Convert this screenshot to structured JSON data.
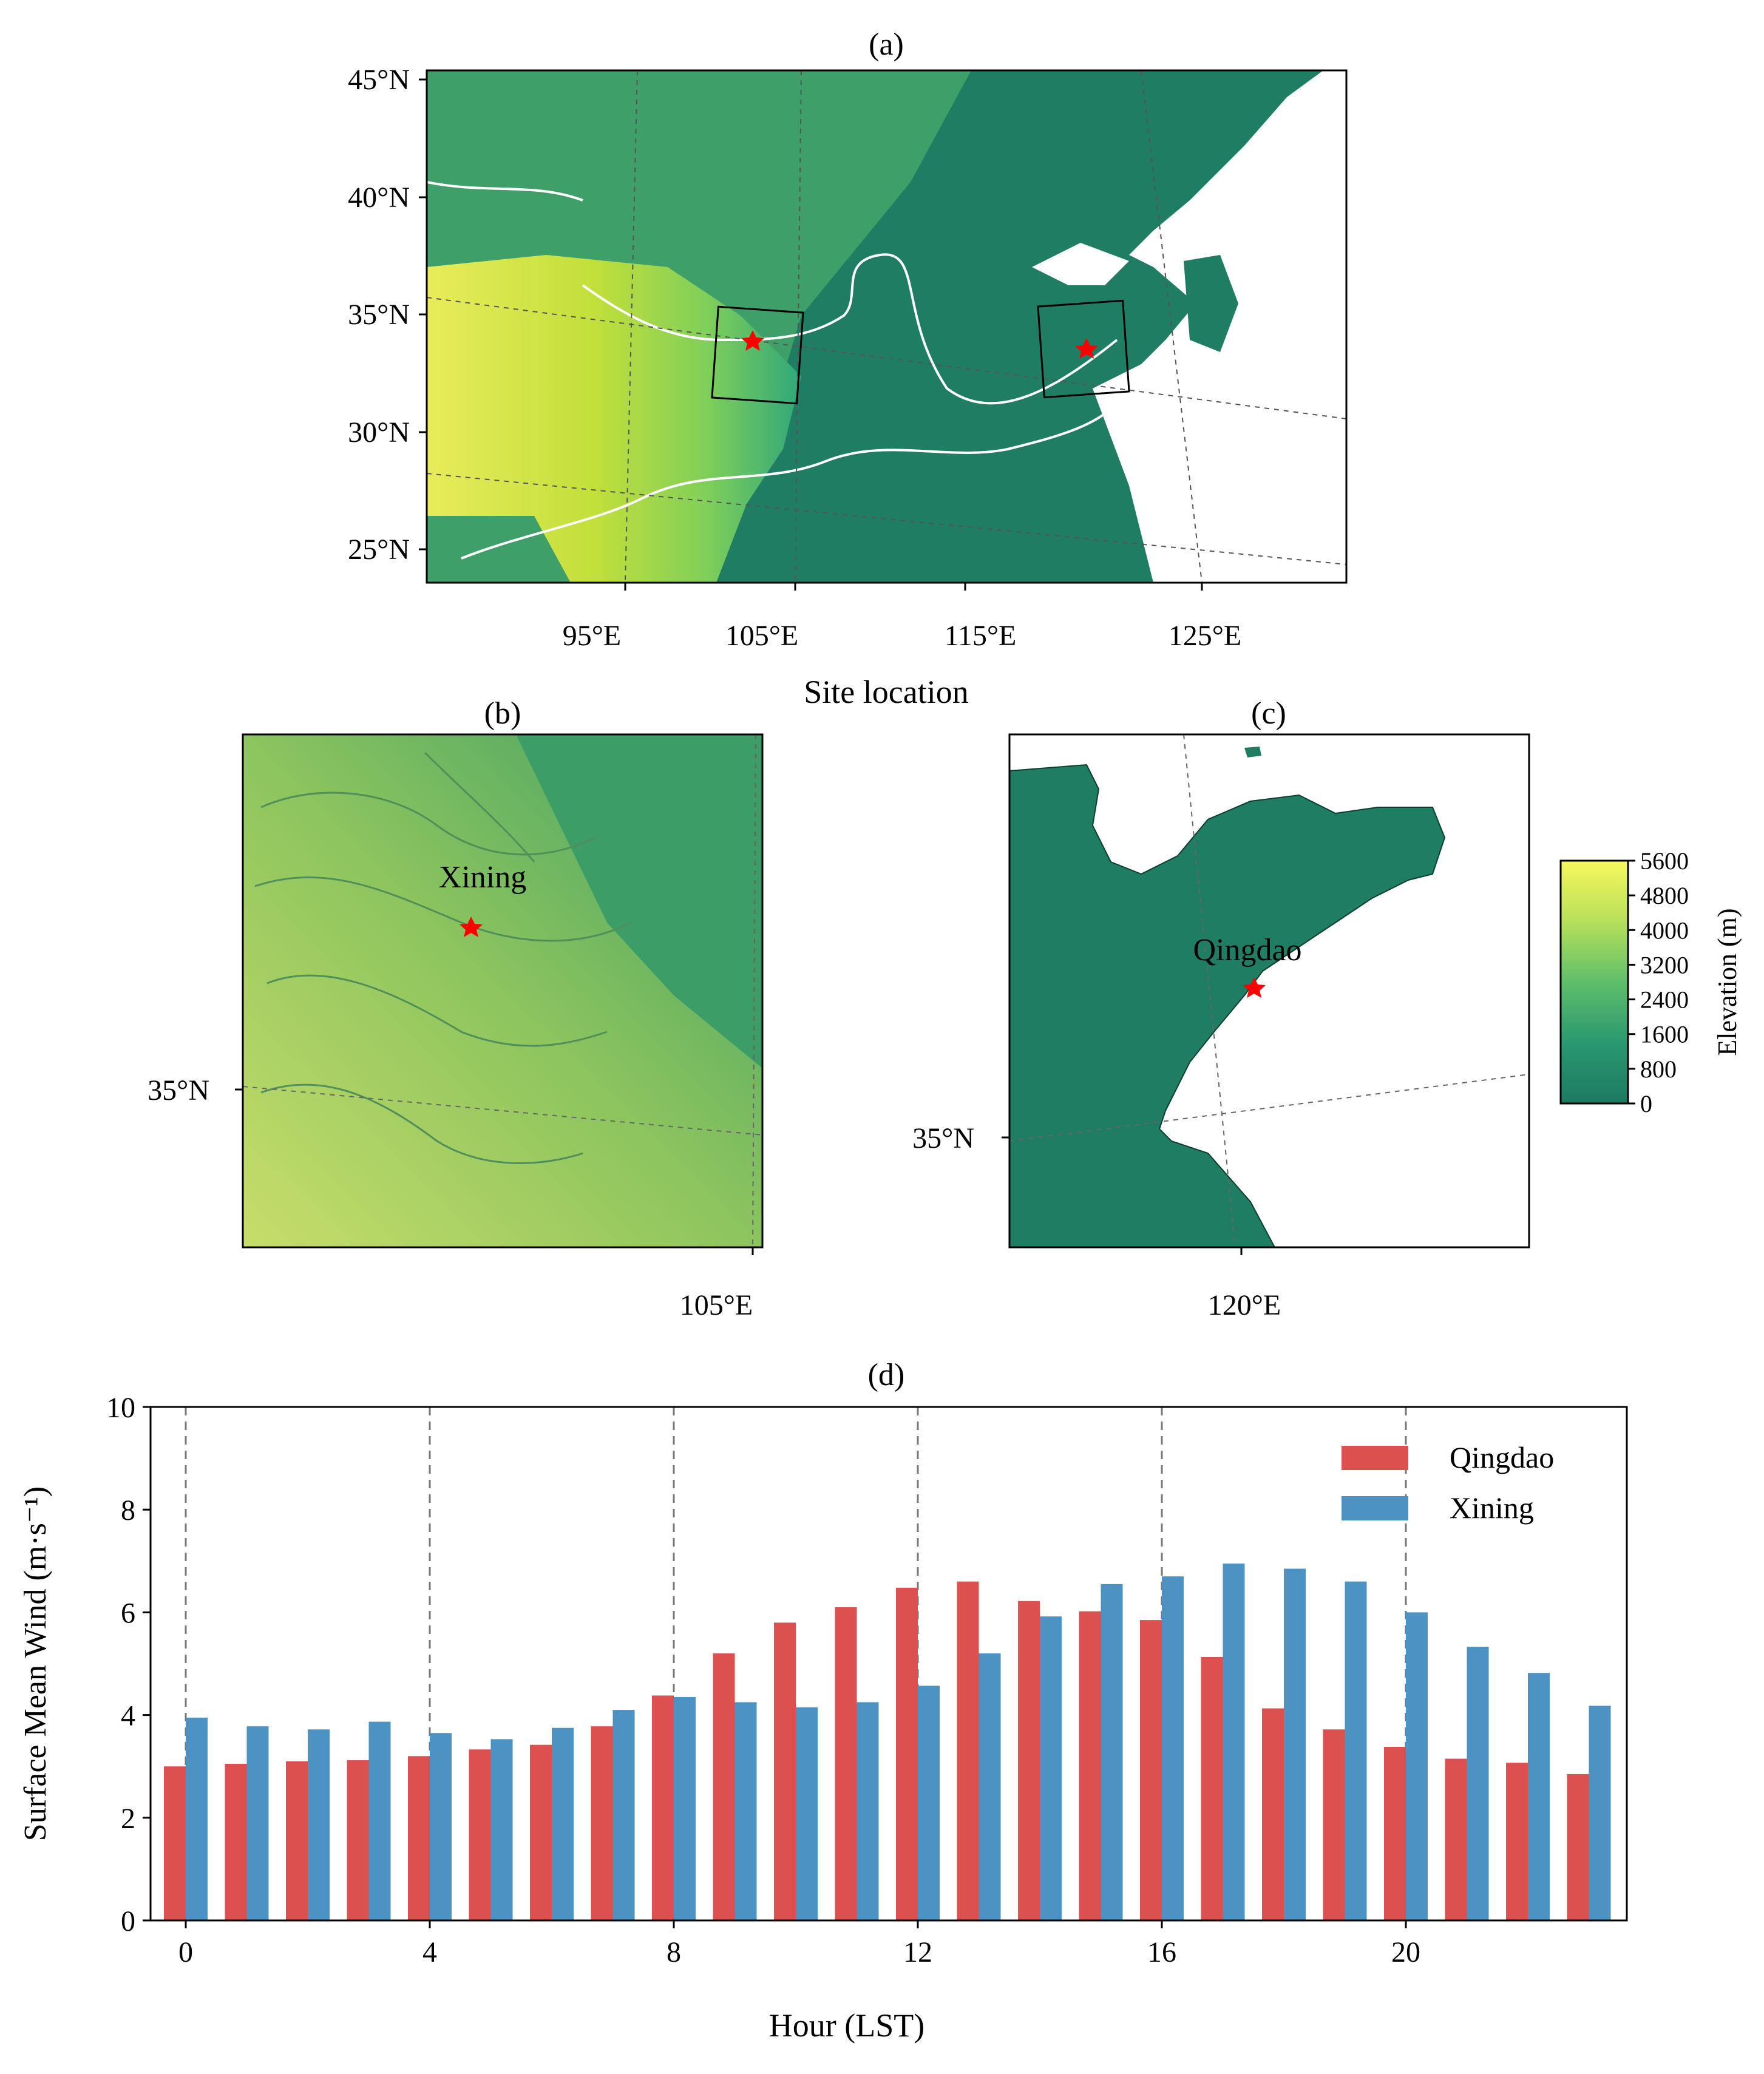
{
  "panels": {
    "a": {
      "title": "(a)",
      "xlabel": "Site location",
      "lat_ticks": [
        "45°N",
        "40°N",
        "35°N",
        "30°N",
        "25°N"
      ],
      "lon_ticks": [
        "95°E",
        "105°E",
        "115°E",
        "125°E"
      ]
    },
    "b": {
      "title": "(b)",
      "site_label": "Xining",
      "lat_tick": "35°N",
      "lon_tick": "105°E"
    },
    "c": {
      "title": "(c)",
      "site_label": "Qingdao",
      "lat_tick": "35°N",
      "lon_tick": "120°E"
    }
  },
  "colorbar": {
    "label": "Elevation (m)",
    "ticks": [
      "5600",
      "4800",
      "4000",
      "3200",
      "2400",
      "1600",
      "800",
      "0"
    ],
    "colors": [
      "#fde725",
      "#c2df23",
      "#86d549",
      "#52c569",
      "#2ab07f",
      "#1e9b8a",
      "#25858e",
      "#2d708e",
      "#38588c",
      "#433e85",
      "#482173",
      "#440154"
    ]
  },
  "colors": {
    "qingdao": "#dc5050",
    "xining": "#4c92c3",
    "lowland": "#1e7d63",
    "star": "#ff0000"
  },
  "chart_data": {
    "type": "bar",
    "title": "(d)",
    "xlabel": "Hour (LST)",
    "ylabel": "Surface Mean Wind (m·s⁻¹)",
    "ylim": [
      0,
      10
    ],
    "yticks": [
      "0",
      "2",
      "4",
      "6",
      "8",
      "10"
    ],
    "xticks": [
      "0",
      "4",
      "8",
      "12",
      "16",
      "20"
    ],
    "categories": [
      0,
      1,
      2,
      3,
      4,
      5,
      6,
      7,
      8,
      9,
      10,
      11,
      12,
      13,
      14,
      15,
      16,
      17,
      18,
      19,
      20,
      21,
      22,
      23
    ],
    "series": [
      {
        "name": "Qingdao",
        "values": [
          3.0,
          3.05,
          3.1,
          3.12,
          3.2,
          3.33,
          3.42,
          3.78,
          4.38,
          5.2,
          5.8,
          6.1,
          6.48,
          6.6,
          6.22,
          6.02,
          5.85,
          5.13,
          4.13,
          3.72,
          3.38,
          3.15,
          3.07,
          2.85
        ]
      },
      {
        "name": "Xining",
        "values": [
          3.95,
          3.78,
          3.72,
          3.87,
          3.65,
          3.53,
          3.75,
          4.1,
          4.35,
          4.25,
          4.15,
          4.25,
          4.57,
          5.2,
          5.92,
          6.55,
          6.7,
          6.95,
          6.85,
          6.6,
          6.0,
          5.33,
          4.82,
          4.18
        ]
      }
    ],
    "legend": [
      "Qingdao",
      "Xining"
    ],
    "legend_position": "top-right",
    "vlines_at": [
      0,
      4,
      8,
      12,
      16,
      20
    ]
  }
}
